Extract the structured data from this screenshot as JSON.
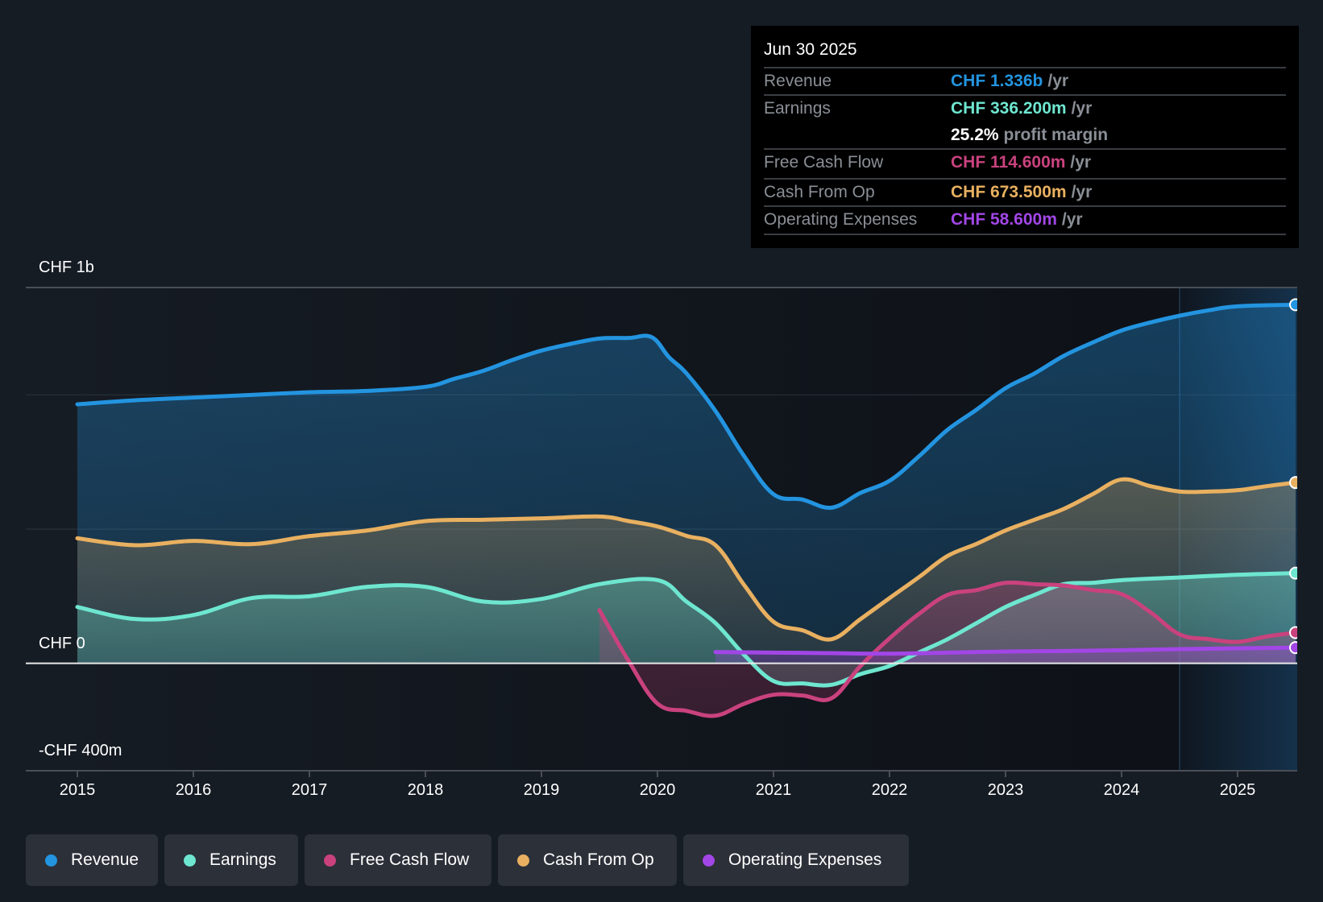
{
  "tooltip": {
    "date": "Jun 30 2025",
    "rows": [
      {
        "label": "Revenue",
        "value": "CHF 1.336b",
        "unit": "/yr",
        "color": "#2394e0"
      },
      {
        "label": "Earnings",
        "value": "CHF 336.200m",
        "unit": "/yr",
        "color": "#6ee6d0"
      },
      {
        "label": "",
        "value": "25.2%",
        "unit": "profit margin",
        "color": "#ffffff"
      },
      {
        "label": "Free Cash Flow",
        "value": "CHF 114.600m",
        "unit": "/yr",
        "color": "#c9427e"
      },
      {
        "label": "Cash From Op",
        "value": "CHF 673.500m",
        "unit": "/yr",
        "color": "#e8b060"
      },
      {
        "label": "Operating Expenses",
        "value": "CHF 58.600m",
        "unit": "/yr",
        "color": "#a246e6"
      }
    ]
  },
  "legend": [
    {
      "label": "Revenue",
      "color": "#2394e0"
    },
    {
      "label": "Earnings",
      "color": "#6ee6d0"
    },
    {
      "label": "Free Cash Flow",
      "color": "#c9427e"
    },
    {
      "label": "Cash From Op",
      "color": "#e8b060"
    },
    {
      "label": "Operating Expenses",
      "color": "#a246e6"
    }
  ],
  "chart_data": {
    "type": "area",
    "title": "",
    "xlabel": "",
    "ylabel": "",
    "unit": "CHF billions",
    "ylim": [
      -0.4,
      1.4
    ],
    "xlim": [
      2015,
      2025.5
    ],
    "y_tick_labels": [
      {
        "value": 1.4,
        "label": "CHF 1b"
      },
      {
        "value": 0,
        "label": "CHF 0"
      },
      {
        "value": -0.4,
        "label": "-CHF 400m"
      }
    ],
    "gridlines": [
      1.4,
      1.0,
      0.5,
      0
    ],
    "x_ticks": [
      2015,
      2016,
      2017,
      2018,
      2019,
      2020,
      2021,
      2022,
      2023,
      2024,
      2025
    ],
    "x_tick_labels": [
      "2015",
      "2016",
      "2017",
      "2018",
      "2019",
      "2020",
      "2021",
      "2022",
      "2023",
      "2024",
      "2025"
    ],
    "highlight_range": [
      2024.5,
      2025.5
    ],
    "legend_position": "bottom",
    "series": [
      {
        "name": "Revenue",
        "color": "#2394e0",
        "x": [
          2015,
          2015.5,
          2016,
          2016.5,
          2017,
          2017.5,
          2018,
          2018.25,
          2018.5,
          2018.75,
          2019,
          2019.25,
          2019.5,
          2019.75,
          2019.95,
          2020.1,
          2020.25,
          2020.5,
          2020.75,
          2021,
          2021.25,
          2021.5,
          2021.75,
          2022,
          2022.25,
          2022.5,
          2022.75,
          2023,
          2023.25,
          2023.5,
          2023.75,
          2024,
          2024.25,
          2024.5,
          2024.75,
          2025,
          2025.5
        ],
        "values": [
          0.965,
          0.98,
          0.99,
          1.0,
          1.01,
          1.015,
          1.03,
          1.06,
          1.09,
          1.13,
          1.165,
          1.19,
          1.21,
          1.212,
          1.215,
          1.14,
          1.08,
          0.94,
          0.77,
          0.63,
          0.61,
          0.58,
          0.635,
          0.68,
          0.77,
          0.87,
          0.945,
          1.025,
          1.08,
          1.145,
          1.195,
          1.24,
          1.27,
          1.295,
          1.315,
          1.33,
          1.336
        ]
      },
      {
        "name": "Cash From Op",
        "color": "#e8b060",
        "x": [
          2015,
          2015.5,
          2016,
          2016.5,
          2017,
          2017.5,
          2018,
          2018.5,
          2019,
          2019.5,
          2019.75,
          2020,
          2020.25,
          2020.5,
          2020.75,
          2021,
          2021.25,
          2021.5,
          2021.75,
          2022,
          2022.25,
          2022.5,
          2022.75,
          2023,
          2023.25,
          2023.5,
          2023.75,
          2024,
          2024.25,
          2024.5,
          2024.75,
          2025,
          2025.25,
          2025.5
        ],
        "values": [
          0.466,
          0.44,
          0.456,
          0.444,
          0.474,
          0.495,
          0.53,
          0.535,
          0.54,
          0.547,
          0.53,
          0.51,
          0.475,
          0.44,
          0.29,
          0.155,
          0.123,
          0.09,
          0.165,
          0.243,
          0.32,
          0.4,
          0.445,
          0.495,
          0.535,
          0.575,
          0.63,
          0.685,
          0.66,
          0.64,
          0.64,
          0.645,
          0.66,
          0.6735
        ]
      },
      {
        "name": "Earnings",
        "color": "#6ee6d0",
        "x": [
          2015,
          2015.5,
          2016,
          2016.5,
          2017,
          2017.5,
          2018,
          2018.5,
          2019,
          2019.5,
          2020,
          2020.25,
          2020.5,
          2020.75,
          2021,
          2021.25,
          2021.5,
          2021.75,
          2022,
          2022.25,
          2022.5,
          2022.75,
          2023,
          2023.25,
          2023.5,
          2023.75,
          2024,
          2024.5,
          2025,
          2025.5
        ],
        "values": [
          0.21,
          0.165,
          0.18,
          0.243,
          0.25,
          0.285,
          0.285,
          0.23,
          0.24,
          0.295,
          0.31,
          0.23,
          0.15,
          0.03,
          -0.066,
          -0.075,
          -0.08,
          -0.04,
          -0.01,
          0.04,
          0.09,
          0.15,
          0.21,
          0.255,
          0.295,
          0.3,
          0.31,
          0.32,
          0.33,
          0.3362
        ]
      },
      {
        "name": "Free Cash Flow",
        "color": "#c9427e",
        "x": [
          2019.5,
          2019.75,
          2020,
          2020.25,
          2020.5,
          2020.75,
          2021,
          2021.25,
          2021.5,
          2021.75,
          2022,
          2022.25,
          2022.5,
          2022.75,
          2023,
          2023.25,
          2023.5,
          2023.75,
          2024,
          2024.25,
          2024.5,
          2024.75,
          2025,
          2025.25,
          2025.5
        ],
        "values": [
          0.198,
          0.01,
          -0.15,
          -0.177,
          -0.195,
          -0.15,
          -0.117,
          -0.12,
          -0.13,
          -0.01,
          0.093,
          0.183,
          0.255,
          0.273,
          0.3,
          0.295,
          0.29,
          0.273,
          0.258,
          0.19,
          0.108,
          0.09,
          0.08,
          0.1,
          0.1146
        ]
      },
      {
        "name": "Operating Expenses",
        "color": "#a246e6",
        "x": [
          2020.5,
          2021,
          2021.5,
          2022,
          2022.5,
          2023,
          2023.5,
          2024,
          2024.5,
          2025,
          2025.5
        ],
        "values": [
          0.042,
          0.04,
          0.038,
          0.036,
          0.04,
          0.044,
          0.046,
          0.049,
          0.053,
          0.056,
          0.0586
        ]
      }
    ]
  }
}
